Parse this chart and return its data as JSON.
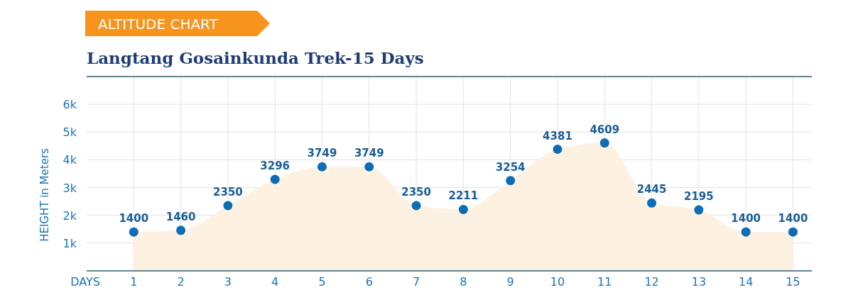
{
  "chart_data": {
    "type": "area",
    "subtitle": "ALTITUDE CHART",
    "title": "Langtang Gosainkunda Trek-15 Days",
    "xlabel": "DAYS",
    "ylabel": "HEIGHT in Meters",
    "x": [
      1,
      2,
      3,
      4,
      5,
      6,
      7,
      8,
      9,
      10,
      11,
      12,
      13,
      14,
      15
    ],
    "series": [
      {
        "color": "#0b6db3",
        "values": [
          1400,
          1460,
          2350,
          3296,
          3749,
          3749,
          2350,
          2211,
          3254,
          4381,
          4609,
          2445,
          2195,
          1400,
          1400
        ]
      }
    ],
    "xlim": [
      0,
      15.4
    ],
    "xticks": [
      1,
      2,
      3,
      4,
      5,
      6,
      7,
      8,
      9,
      10,
      11,
      12,
      13,
      14,
      15
    ],
    "ylim": [
      0,
      7000
    ],
    "yticks": [
      {
        "value": 1000,
        "label": "1k"
      },
      {
        "value": 2000,
        "label": "2k"
      },
      {
        "value": 3000,
        "label": "3k"
      },
      {
        "value": 4000,
        "label": "4k"
      },
      {
        "value": 5000,
        "label": "5k"
      },
      {
        "value": 6000,
        "label": "6k"
      }
    ],
    "grid": true,
    "marker": "circle",
    "data_labels": true
  }
}
